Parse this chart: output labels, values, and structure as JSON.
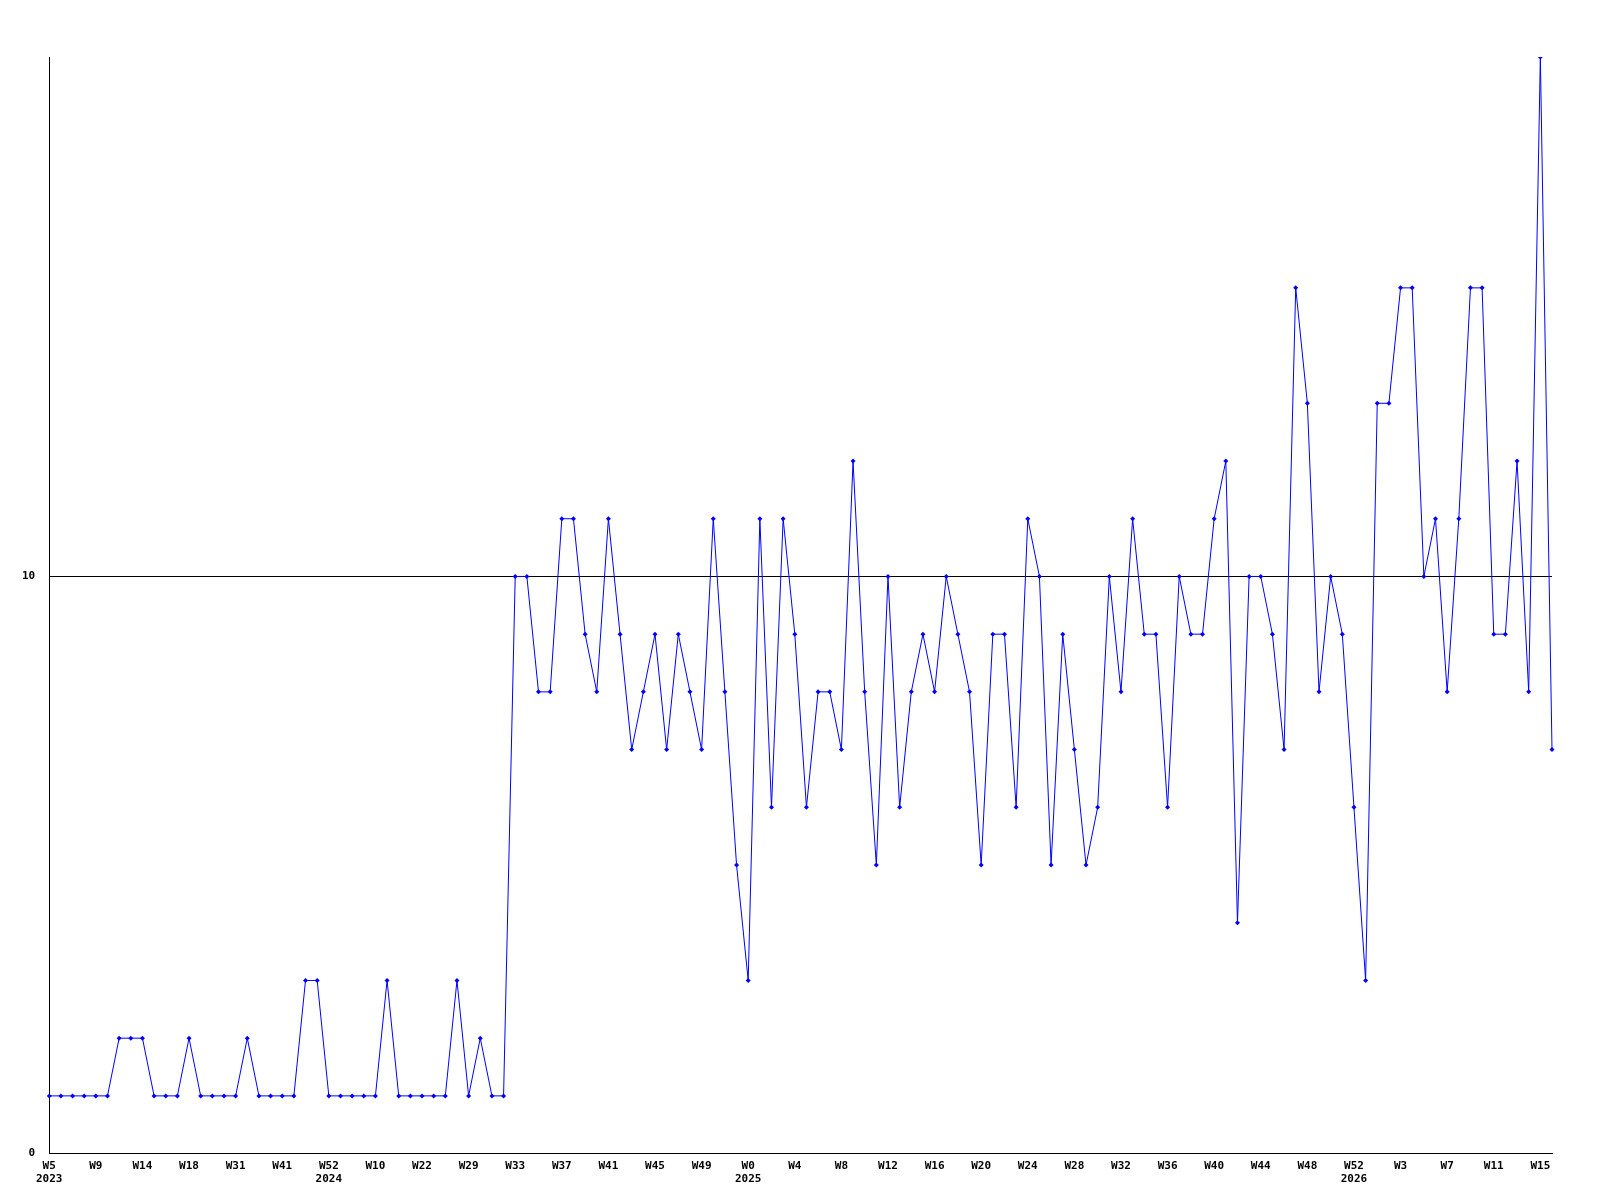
{
  "chart_data": {
    "type": "line",
    "categories": [
      "W5\n2023",
      null,
      null,
      null,
      "W9",
      null,
      null,
      null,
      "W14",
      null,
      null,
      null,
      "W18",
      null,
      null,
      null,
      "W31",
      null,
      null,
      null,
      "W41",
      null,
      null,
      null,
      "W52\n2024",
      null,
      null,
      null,
      "W10",
      null,
      null,
      null,
      "W22",
      null,
      null,
      null,
      "W29",
      null,
      null,
      null,
      "W33",
      null,
      null,
      null,
      "W37",
      null,
      null,
      null,
      "W41",
      null,
      null,
      null,
      "W45",
      null,
      null,
      null,
      "W49",
      null,
      null,
      null,
      "W0\n2025",
      null,
      null,
      null,
      "W4",
      null,
      null,
      null,
      "W8",
      null,
      null,
      null,
      "W12",
      null,
      null,
      null,
      "W16",
      null,
      null,
      null,
      "W20",
      null,
      null,
      null,
      "W24",
      null,
      null,
      null,
      "W28",
      null,
      null,
      null,
      "W32",
      null,
      null,
      null,
      "W36",
      null,
      null,
      null,
      "W40",
      null,
      null,
      null,
      "W44",
      null,
      null,
      null,
      "W48",
      null,
      null,
      null,
      "W52\n2026",
      null,
      null,
      null,
      "W3",
      null,
      null,
      null,
      "W7",
      null,
      null,
      null,
      "W11",
      null,
      null,
      null,
      "W15",
      null
    ],
    "values": [
      1,
      1,
      1,
      1,
      1,
      1,
      2,
      2,
      2,
      1,
      1,
      1,
      2,
      1,
      1,
      1,
      1,
      2,
      1,
      1,
      1,
      1,
      3,
      3,
      1,
      1,
      1,
      1,
      1,
      3,
      1,
      1,
      1,
      1,
      1,
      3,
      1,
      2,
      1,
      1,
      10,
      10,
      8,
      8,
      11,
      11,
      9,
      8,
      11,
      9,
      7,
      8,
      9,
      7,
      9,
      8,
      7,
      11,
      8,
      5,
      3,
      11,
      6,
      11,
      9,
      6,
      8,
      8,
      7,
      12,
      8,
      5,
      10,
      6,
      8,
      9,
      8,
      10,
      9,
      8,
      5,
      9,
      9,
      6,
      11,
      10,
      5,
      9,
      7,
      5,
      6,
      10,
      8,
      11,
      9,
      9,
      6,
      10,
      9,
      9,
      11,
      12,
      4,
      10,
      10,
      9,
      7,
      15,
      13,
      8,
      10,
      9,
      6,
      3,
      13,
      13,
      15,
      15,
      10,
      11,
      8,
      11,
      15,
      15,
      9,
      9,
      12,
      8,
      19,
      7
    ],
    "color": "#0000ff",
    "marker": "diamond",
    "ylim": [
      0,
      19
    ],
    "yticks": [
      0,
      10
    ],
    "grid": "y"
  }
}
